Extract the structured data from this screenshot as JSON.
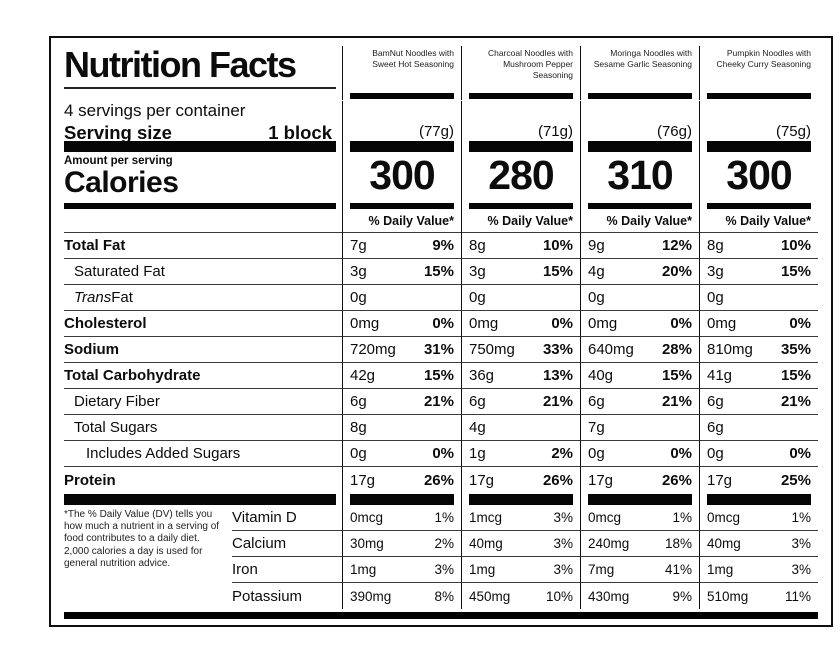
{
  "label": {
    "title": "Nutrition Facts",
    "servings_per_container": "4 servings per container",
    "serving_size_label": "Serving size",
    "serving_size_value": "1 block",
    "amount_per_serving": "Amount per serving",
    "calories_label": "Calories",
    "daily_value_header": "% Daily Value*",
    "footnote": "*The % Daily Value (DV) tells you how much a nutrient in a serving of food contributes to a daily diet. 2,000 calories a day is used for general nutrition advice."
  },
  "products": [
    {
      "name": "BamNut Noodles with Sweet Hot Seasoning",
      "serving_weight": "(77g)",
      "calories": "300"
    },
    {
      "name": "Charcoal Noodles with Mushroom Pepper Seasoning",
      "serving_weight": "(71g)",
      "calories": "280"
    },
    {
      "name": "Moringa Noodles with Sesame Garlic Seasoning",
      "serving_weight": "(76g)",
      "calories": "310"
    },
    {
      "name": "Pumpkin Noodles with Cheeky Curry Seasoning",
      "serving_weight": "(75g)",
      "calories": "300"
    }
  ],
  "nutrients": [
    {
      "label": "Total Fat",
      "values": [
        [
          "7g",
          "9%"
        ],
        [
          "8g",
          "10%"
        ],
        [
          "9g",
          "12%"
        ],
        [
          "8g",
          "10%"
        ]
      ]
    },
    {
      "label": "Saturated Fat",
      "values": [
        [
          "3g",
          "15%"
        ],
        [
          "3g",
          "15%"
        ],
        [
          "4g",
          "20%"
        ],
        [
          "3g",
          "15%"
        ]
      ]
    },
    {
      "label_italic": "Trans",
      "label_rest": " Fat",
      "values": [
        [
          "0g",
          ""
        ],
        [
          "0g",
          ""
        ],
        [
          "0g",
          ""
        ],
        [
          "0g",
          ""
        ]
      ]
    },
    {
      "label": "Cholesterol",
      "values": [
        [
          "0mg",
          "0%"
        ],
        [
          "0mg",
          "0%"
        ],
        [
          "0mg",
          "0%"
        ],
        [
          "0mg",
          "0%"
        ]
      ]
    },
    {
      "label": "Sodium",
      "values": [
        [
          "720mg",
          "31%"
        ],
        [
          "750mg",
          "33%"
        ],
        [
          "640mg",
          "28%"
        ],
        [
          "810mg",
          "35%"
        ]
      ]
    },
    {
      "label": "Total Carbohydrate",
      "values": [
        [
          "42g",
          "15%"
        ],
        [
          "36g",
          "13%"
        ],
        [
          "40g",
          "15%"
        ],
        [
          "41g",
          "15%"
        ]
      ]
    },
    {
      "label": "Dietary Fiber",
      "values": [
        [
          "6g",
          "21%"
        ],
        [
          "6g",
          "21%"
        ],
        [
          "6g",
          "21%"
        ],
        [
          "6g",
          "21%"
        ]
      ]
    },
    {
      "label": "Total Sugars",
      "values": [
        [
          "8g",
          ""
        ],
        [
          "4g",
          ""
        ],
        [
          "7g",
          ""
        ],
        [
          "6g",
          ""
        ]
      ]
    },
    {
      "label": "Includes Added Sugars",
      "values": [
        [
          "0g",
          "0%"
        ],
        [
          "1g",
          "2%"
        ],
        [
          "0g",
          "0%"
        ],
        [
          "0g",
          "0%"
        ]
      ]
    },
    {
      "label": "Protein",
      "values": [
        [
          "17g",
          "26%"
        ],
        [
          "17g",
          "26%"
        ],
        [
          "17g",
          "26%"
        ],
        [
          "17g",
          "25%"
        ]
      ]
    }
  ],
  "vitamins": [
    {
      "label": "Vitamin D",
      "values": [
        [
          "0mcg",
          "1%"
        ],
        [
          "1mcg",
          "3%"
        ],
        [
          "0mcg",
          "1%"
        ],
        [
          "0mcg",
          "1%"
        ]
      ]
    },
    {
      "label": "Calcium",
      "values": [
        [
          "30mg",
          "2%"
        ],
        [
          "40mg",
          "3%"
        ],
        [
          "240mg",
          "18%"
        ],
        [
          "40mg",
          "3%"
        ]
      ]
    },
    {
      "label": "Iron",
      "values": [
        [
          "1mg",
          "3%"
        ],
        [
          "1mg",
          "3%"
        ],
        [
          "7mg",
          "41%"
        ],
        [
          "1mg",
          "3%"
        ]
      ]
    },
    {
      "label": "Potassium",
      "values": [
        [
          "390mg",
          "8%"
        ],
        [
          "450mg",
          "10%"
        ],
        [
          "430mg",
          "9%"
        ],
        [
          "510mg",
          "11%"
        ]
      ]
    }
  ]
}
